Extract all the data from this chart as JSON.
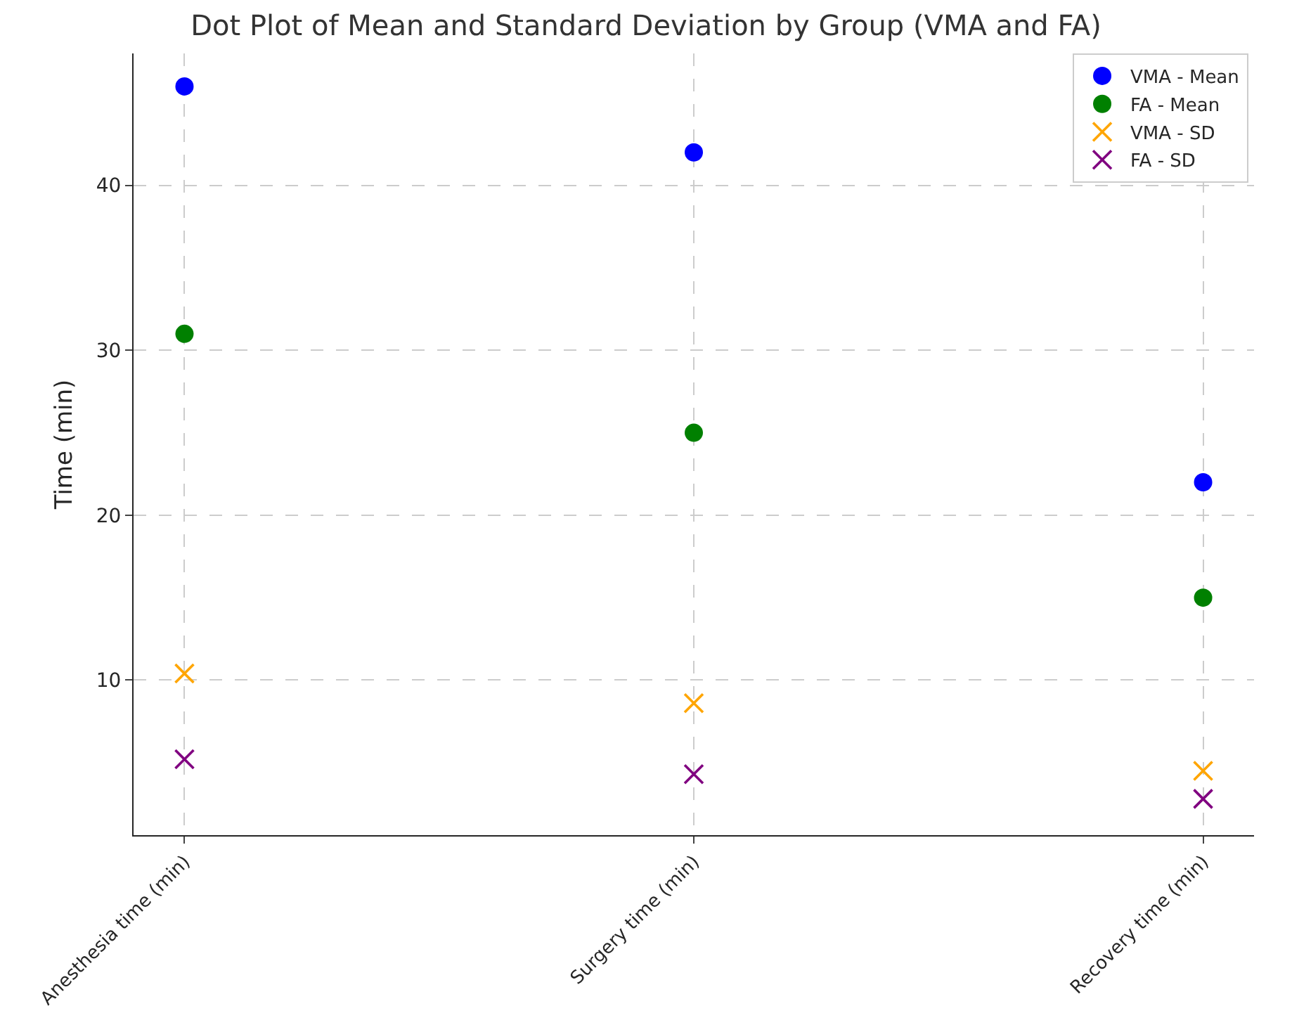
{
  "chart_data": {
    "type": "scatter",
    "title": "Dot Plot of Mean and Standard Deviation by Group (VMA and FA)",
    "ylabel": "Time (min)",
    "categories": [
      "Anesthesia time (min)",
      "Surgery time (min)",
      "Recovery time (min)"
    ],
    "series": [
      {
        "name": "VMA - Mean",
        "color": "#0000ff",
        "marker": "circle",
        "values": [
          46,
          42,
          22
        ]
      },
      {
        "name": "FA - Mean",
        "color": "#008000",
        "marker": "circle",
        "values": [
          31,
          25,
          15
        ]
      },
      {
        "name": "VMA - SD",
        "color": "#ffa500",
        "marker": "cross",
        "values": [
          10.4,
          8.6,
          4.5
        ]
      },
      {
        "name": "FA - SD",
        "color": "#800080",
        "marker": "cross",
        "values": [
          5.2,
          4.3,
          2.8
        ]
      }
    ],
    "ylim": [
      0.6,
      48
    ],
    "yticks": [
      10,
      20,
      30,
      40
    ],
    "grid": true,
    "legend": "top right"
  }
}
